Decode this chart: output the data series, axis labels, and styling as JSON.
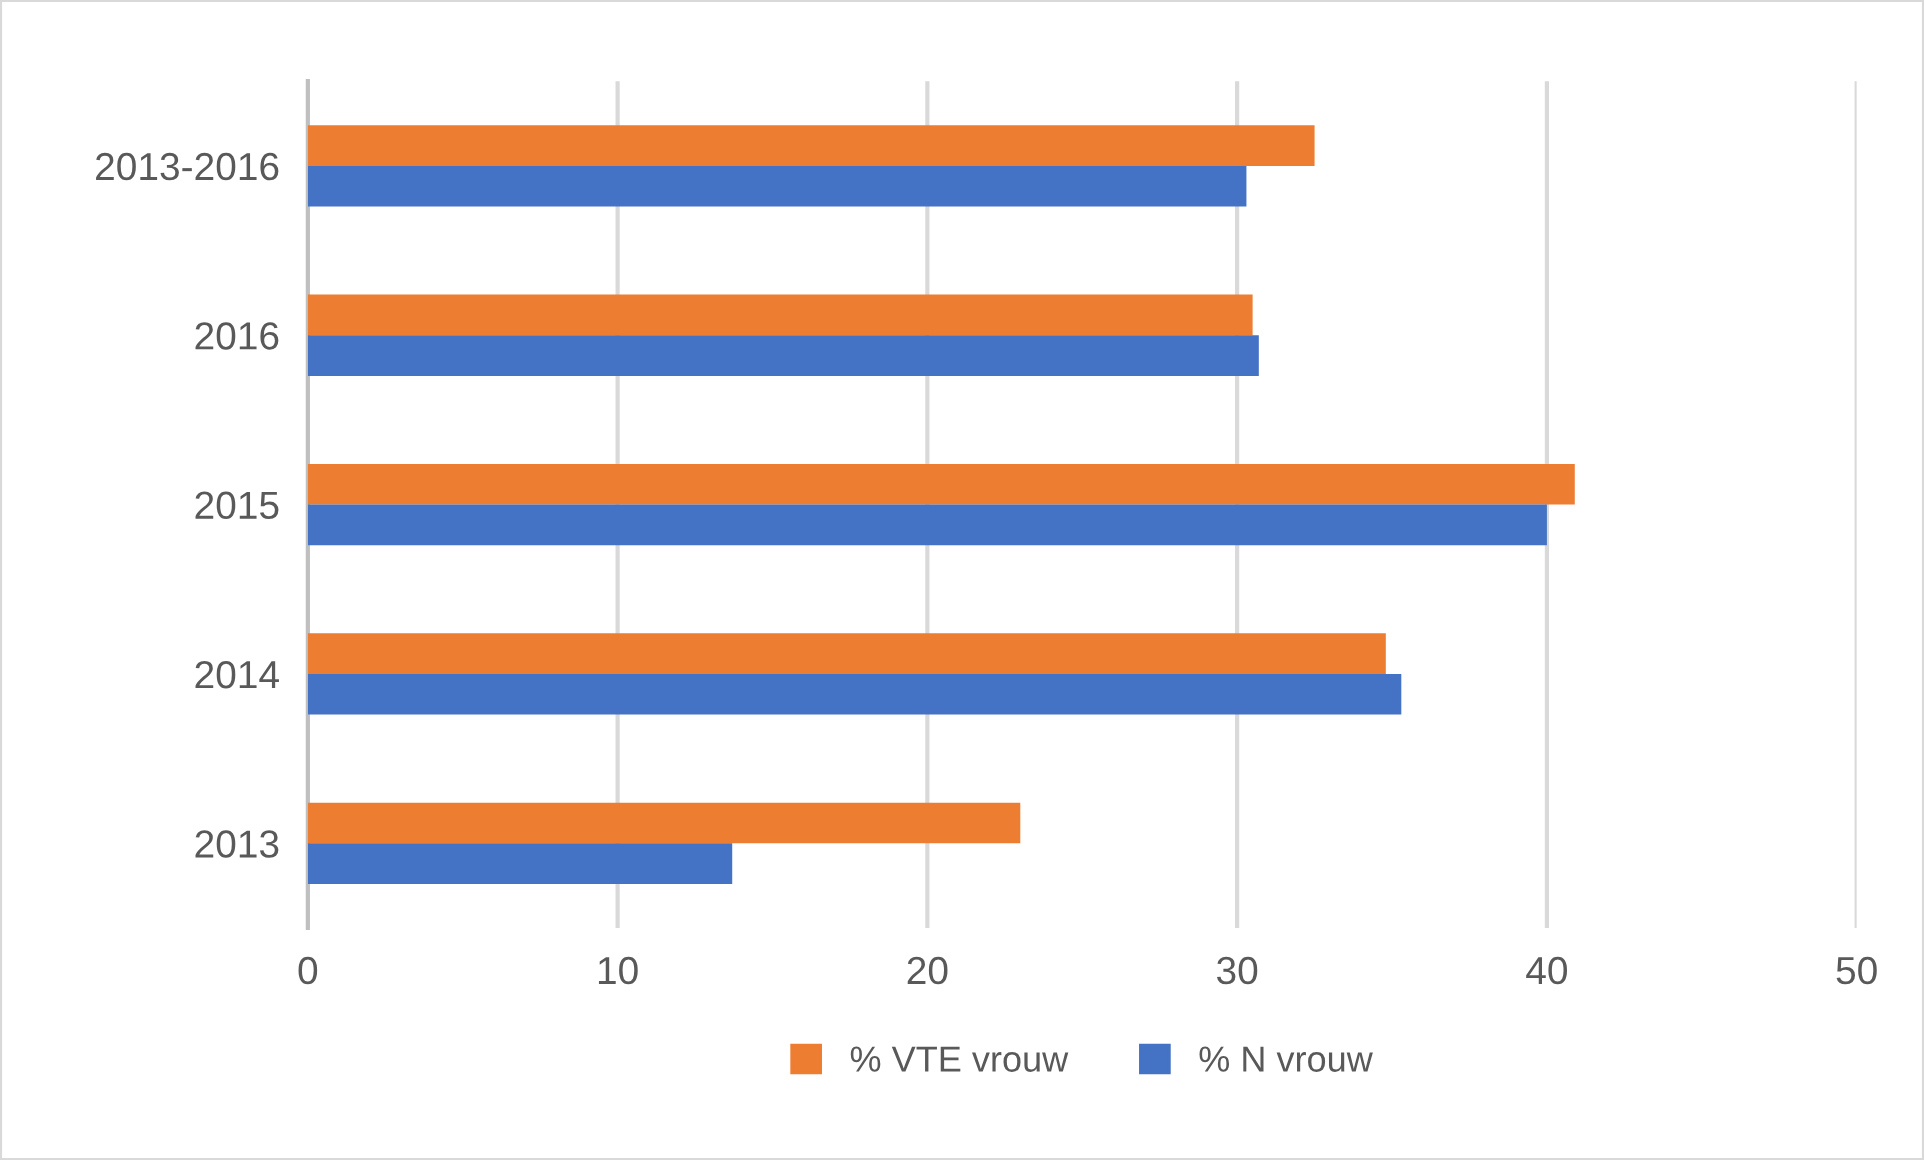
{
  "chart_data": {
    "type": "bar",
    "orientation": "horizontal",
    "categories": [
      "2013-2016",
      "2016",
      "2015",
      "2014",
      "2013"
    ],
    "series": [
      {
        "name": "% VTE vrouw",
        "color": "#ed7d31",
        "values": [
          32.5,
          30.5,
          40.9,
          34.8,
          23.0
        ]
      },
      {
        "name": "% N vrouw",
        "color": "#4472c4",
        "values": [
          30.3,
          30.7,
          40.0,
          35.3,
          13.7
        ]
      }
    ],
    "xlim": [
      0,
      50
    ],
    "xticks": [
      0,
      10,
      20,
      30,
      40,
      50
    ],
    "grid": "x",
    "legend": "bottom"
  }
}
